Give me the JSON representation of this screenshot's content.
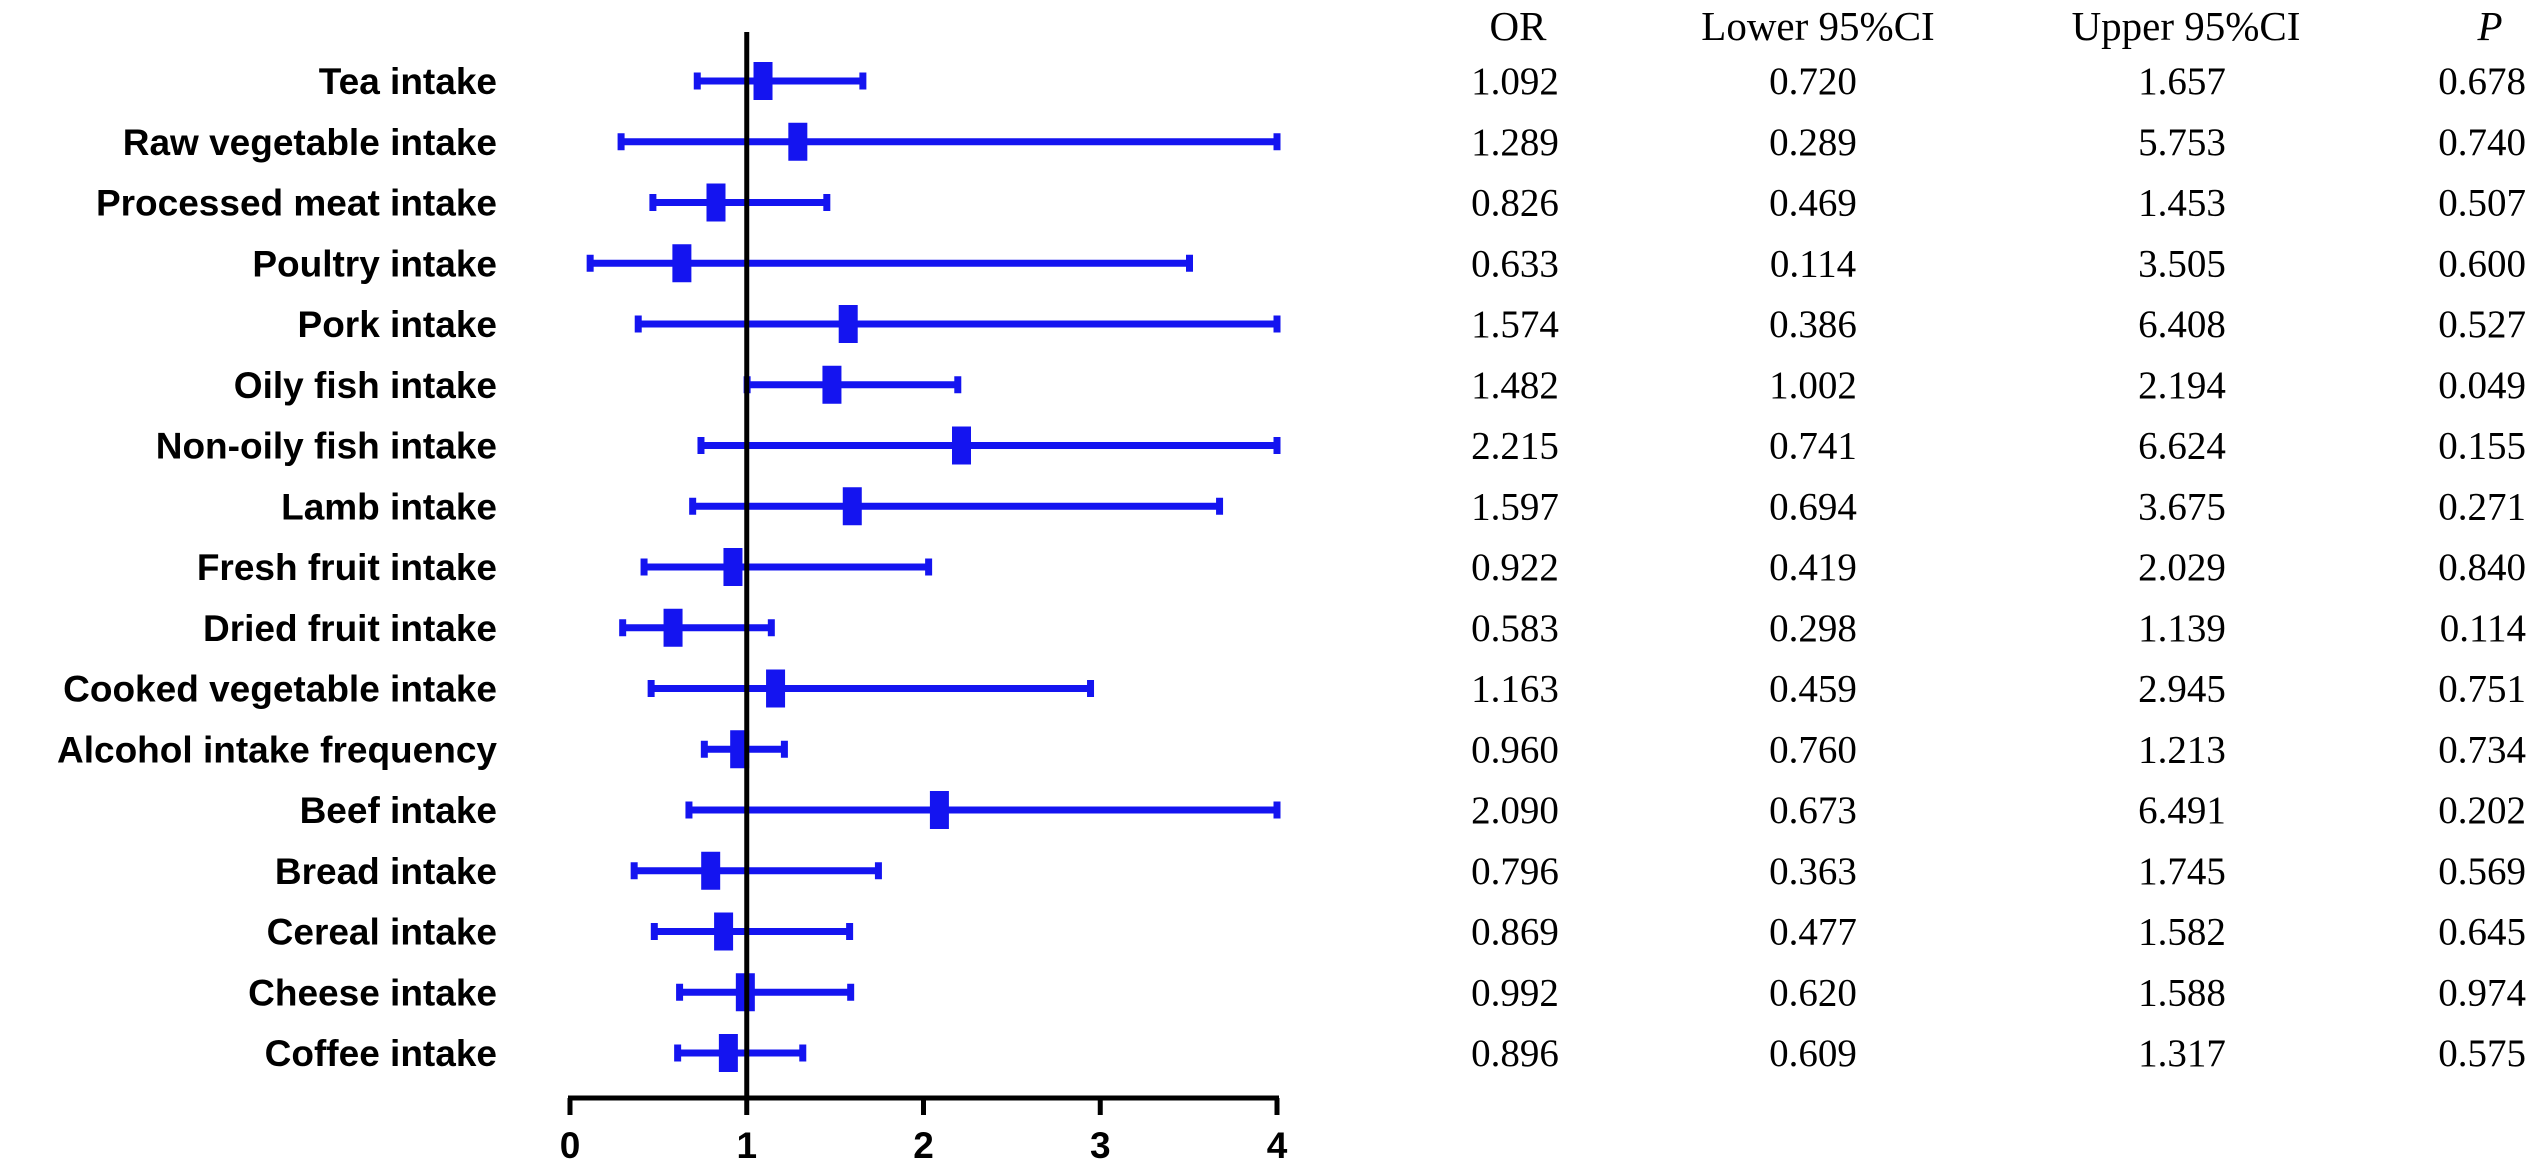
{
  "chart_data": {
    "type": "forest",
    "title": "",
    "xlabel": "",
    "ylabel": "",
    "xlim": [
      0,
      4
    ],
    "xticks": [
      "0",
      "1",
      "2",
      "3",
      "4"
    ],
    "reference_line": 1,
    "colors": {
      "marker": "#1414f0",
      "axis": "#000000",
      "text": "#000000"
    },
    "columns": [
      "OR",
      "Lower 95%CI",
      "Upper 95%CI",
      "P"
    ],
    "rows": [
      {
        "label": "Tea intake",
        "or": "1.092",
        "lower": "0.720",
        "upper": "1.657",
        "p": "0.678"
      },
      {
        "label": "Raw vegetable intake",
        "or": "1.289",
        "lower": "0.289",
        "upper": "5.753",
        "p": "0.740"
      },
      {
        "label": "Processed meat intake",
        "or": "0.826",
        "lower": "0.469",
        "upper": "1.453",
        "p": "0.507"
      },
      {
        "label": "Poultry intake",
        "or": "0.633",
        "lower": "0.114",
        "upper": "3.505",
        "p": "0.600"
      },
      {
        "label": "Pork intake",
        "or": "1.574",
        "lower": "0.386",
        "upper": "6.408",
        "p": "0.527"
      },
      {
        "label": "Oily fish intake",
        "or": "1.482",
        "lower": "1.002",
        "upper": "2.194",
        "p": "0.049"
      },
      {
        "label": "Non-oily fish intake",
        "or": "2.215",
        "lower": "0.741",
        "upper": "6.624",
        "p": "0.155"
      },
      {
        "label": "Lamb intake",
        "or": "1.597",
        "lower": "0.694",
        "upper": "3.675",
        "p": "0.271"
      },
      {
        "label": "Fresh fruit intake",
        "or": "0.922",
        "lower": "0.419",
        "upper": "2.029",
        "p": "0.840"
      },
      {
        "label": "Dried fruit intake",
        "or": "0.583",
        "lower": "0.298",
        "upper": "1.139",
        "p": "0.114"
      },
      {
        "label": "Cooked vegetable intake",
        "or": "1.163",
        "lower": "0.459",
        "upper": "2.945",
        "p": "0.751"
      },
      {
        "label": "Alcohol intake frequency",
        "or": "0.960",
        "lower": "0.760",
        "upper": "1.213",
        "p": "0.734"
      },
      {
        "label": "Beef intake",
        "or": "2.090",
        "lower": "0.673",
        "upper": "6.491",
        "p": "0.202"
      },
      {
        "label": "Bread intake",
        "or": "0.796",
        "lower": "0.363",
        "upper": "1.745",
        "p": "0.569"
      },
      {
        "label": "Cereal intake",
        "or": "0.869",
        "lower": "0.477",
        "upper": "1.582",
        "p": "0.645"
      },
      {
        "label": "Cheese intake",
        "or": "0.992",
        "lower": "0.620",
        "upper": "1.588",
        "p": "0.974"
      },
      {
        "label": "Coffee intake",
        "or": "0.896",
        "lower": "0.609",
        "upper": "1.317",
        "p": "0.575"
      }
    ]
  }
}
